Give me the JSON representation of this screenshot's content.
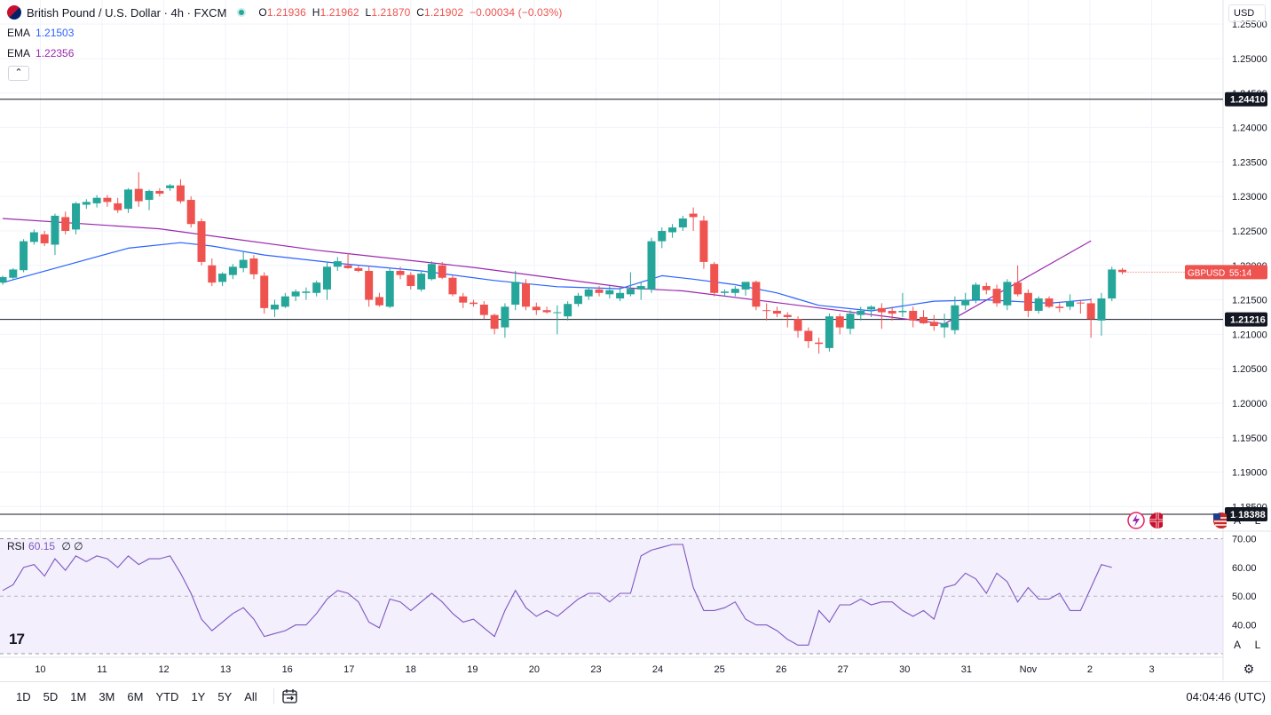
{
  "header": {
    "symbol_title": "British Pound / U.S. Dollar · 4h · FXCM",
    "ohlc": {
      "o_label": "O",
      "o": "1.21936",
      "h_label": "H",
      "h": "1.21962",
      "l_label": "L",
      "l": "1.21870",
      "c_label": "C",
      "c": "1.21902",
      "change": "−0.00034 (−0.03%)"
    },
    "ema_fast": {
      "label": "EMA",
      "value": "1.21503",
      "color": "#2962ff"
    },
    "ema_slow": {
      "label": "EMA",
      "value": "1.22356",
      "color": "#9c27b0"
    },
    "collapse_glyph": "⌃"
  },
  "axis": {
    "currency": "USD",
    "auto_label": "A",
    "log_label": "L",
    "settings_glyph": "⚙"
  },
  "rsi": {
    "label": "RSI",
    "value": "60.15",
    "extra": "∅ ∅",
    "color": "#7e57c2"
  },
  "time_ranges": [
    "1D",
    "5D",
    "1M",
    "3M",
    "6M",
    "YTD",
    "1Y",
    "5Y",
    "All"
  ],
  "clock": "04:04:46 (UTC)",
  "logo_text": "17",
  "colors": {
    "up": "#26a69a",
    "down": "#ef5350",
    "grid": "#f0f3fa",
    "hline": "#131722",
    "rsi_fill": "#f3effc"
  },
  "chart_data": {
    "type": "candlestick",
    "title": "British Pound / U.S. Dollar · 4h · FXCM",
    "ylim": [
      1.1835,
      1.2585
    ],
    "y_ticks": [
      "1.25500",
      "1.25000",
      "1.24500",
      "1.24000",
      "1.23500",
      "1.23000",
      "1.22500",
      "1.22000",
      "1.21500",
      "1.21000",
      "1.20500",
      "1.20000",
      "1.19500",
      "1.19000",
      "1.18500"
    ],
    "x_ticks": [
      {
        "label": "10",
        "idx": 3.6
      },
      {
        "label": "11",
        "idx": 9.5
      },
      {
        "label": "12",
        "idx": 15.4
      },
      {
        "label": "13",
        "idx": 21.3
      },
      {
        "label": "16",
        "idx": 27.2
      },
      {
        "label": "17",
        "idx": 33.1
      },
      {
        "label": "18",
        "idx": 39.0
      },
      {
        "label": "19",
        "idx": 44.9
      },
      {
        "label": "20",
        "idx": 50.8
      },
      {
        "label": "23",
        "idx": 56.7
      },
      {
        "label": "24",
        "idx": 62.6
      },
      {
        "label": "25",
        "idx": 68.5
      },
      {
        "label": "26",
        "idx": 74.4
      },
      {
        "label": "27",
        "idx": 80.3
      },
      {
        "label": "30",
        "idx": 86.2
      },
      {
        "label": "31",
        "idx": 92.1
      },
      {
        "label": "Nov",
        "idx": 98.0
      },
      {
        "label": "2",
        "idx": 103.9
      },
      {
        "label": "3",
        "idx": 109.8
      }
    ],
    "horizontal_levels": [
      {
        "value": 1.2441,
        "label": "1.24410"
      },
      {
        "value": 1.21216,
        "label": "1.21216"
      },
      {
        "value": 1.18388,
        "label": "1.18388"
      }
    ],
    "last_price": {
      "symbol": "GBPUSD",
      "countdown": "55:14",
      "value": 1.21902
    },
    "candles": [
      [
        1.2175,
        1.2185,
        1.2172,
        1.2183
      ],
      [
        1.2182,
        1.2196,
        1.218,
        1.2194
      ],
      [
        1.2193,
        1.2238,
        1.219,
        1.2235
      ],
      [
        1.2234,
        1.2252,
        1.223,
        1.2248
      ],
      [
        1.2245,
        1.225,
        1.2228,
        1.2232
      ],
      [
        1.223,
        1.2275,
        1.2215,
        1.2272
      ],
      [
        1.227,
        1.2278,
        1.2245,
        1.225
      ],
      [
        1.2252,
        1.2292,
        1.2245,
        1.229
      ],
      [
        1.2288,
        1.2296,
        1.2282,
        1.2292
      ],
      [
        1.229,
        1.2302,
        1.2284,
        1.2298
      ],
      [
        1.2298,
        1.2302,
        1.2285,
        1.2292
      ],
      [
        1.229,
        1.2298,
        1.2276,
        1.228
      ],
      [
        1.2282,
        1.2312,
        1.2276,
        1.231
      ],
      [
        1.2311,
        1.2335,
        1.2285,
        1.2293
      ],
      [
        1.2295,
        1.231,
        1.228,
        1.2308
      ],
      [
        1.2308,
        1.2312,
        1.23,
        1.2304
      ],
      [
        1.2312,
        1.2318,
        1.2308,
        1.2316
      ],
      [
        1.2316,
        1.2325,
        1.229,
        1.2293
      ],
      [
        1.2295,
        1.23,
        1.2255,
        1.226
      ],
      [
        1.2264,
        1.2268,
        1.22,
        1.2205
      ],
      [
        1.22,
        1.221,
        1.217,
        1.2175
      ],
      [
        1.2176,
        1.219,
        1.217,
        1.2188
      ],
      [
        1.2186,
        1.2202,
        1.218,
        1.2198
      ],
      [
        1.2196,
        1.222,
        1.219,
        1.2208
      ],
      [
        1.221,
        1.2215,
        1.218,
        1.2187
      ],
      [
        1.2185,
        1.219,
        1.213,
        1.2138
      ],
      [
        1.2136,
        1.215,
        1.2125,
        1.2143
      ],
      [
        1.214,
        1.216,
        1.2138,
        1.2155
      ],
      [
        1.2155,
        1.2165,
        1.2148,
        1.2162
      ],
      [
        1.216,
        1.2168,
        1.215,
        1.2162
      ],
      [
        1.216,
        1.2178,
        1.2155,
        1.2175
      ],
      [
        1.2165,
        1.2205,
        1.215,
        1.2198
      ],
      [
        1.2198,
        1.2212,
        1.2192,
        1.2206
      ],
      [
        1.22,
        1.2218,
        1.2195,
        1.2196
      ],
      [
        1.2196,
        1.22,
        1.219,
        1.2192
      ],
      [
        1.2192,
        1.2198,
        1.214,
        1.215
      ],
      [
        1.2154,
        1.216,
        1.214,
        1.2142
      ],
      [
        1.214,
        1.2195,
        1.2138,
        1.2192
      ],
      [
        1.2192,
        1.2198,
        1.218,
        1.2186
      ],
      [
        1.2186,
        1.219,
        1.2165,
        1.217
      ],
      [
        1.2165,
        1.2192,
        1.2162,
        1.2188
      ],
      [
        1.218,
        1.2206,
        1.2178,
        1.2202
      ],
      [
        1.22,
        1.2205,
        1.218,
        1.2182
      ],
      [
        1.2182,
        1.2185,
        1.2155,
        1.2158
      ],
      [
        1.2155,
        1.216,
        1.2138,
        1.2146
      ],
      [
        1.2146,
        1.215,
        1.214,
        1.2144
      ],
      [
        1.2143,
        1.2148,
        1.2122,
        1.2128
      ],
      [
        1.2128,
        1.213,
        1.21,
        1.2108
      ],
      [
        1.211,
        1.2145,
        1.2095,
        1.214
      ],
      [
        1.2143,
        1.2192,
        1.2135,
        1.2176
      ],
      [
        1.2174,
        1.218,
        1.2135,
        1.214
      ],
      [
        1.214,
        1.2146,
        1.2128,
        1.2135
      ],
      [
        1.2135,
        1.214,
        1.213,
        1.2132
      ],
      [
        1.2132,
        1.2142,
        1.21,
        1.2132
      ],
      [
        1.2126,
        1.2148,
        1.212,
        1.2144
      ],
      [
        1.2144,
        1.216,
        1.214,
        1.2156
      ],
      [
        1.2155,
        1.2168,
        1.215,
        1.2165
      ],
      [
        1.2165,
        1.217,
        1.2155,
        1.216
      ],
      [
        1.2158,
        1.217,
        1.2152,
        1.2164
      ],
      [
        1.2152,
        1.217,
        1.2148,
        1.216
      ],
      [
        1.2158,
        1.219,
        1.2155,
        1.2166
      ],
      [
        1.2165,
        1.2175,
        1.215,
        1.217
      ],
      [
        1.2165,
        1.224,
        1.216,
        1.2235
      ],
      [
        1.2235,
        1.2255,
        1.2225,
        1.225
      ],
      [
        1.2248,
        1.226,
        1.224,
        1.2255
      ],
      [
        1.2255,
        1.2272,
        1.225,
        1.2268
      ],
      [
        1.2275,
        1.2284,
        1.225,
        1.227
      ],
      [
        1.2265,
        1.2272,
        1.2195,
        1.2205
      ],
      [
        1.2202,
        1.2205,
        1.2155,
        1.216
      ],
      [
        1.216,
        1.2165,
        1.2155,
        1.2162
      ],
      [
        1.216,
        1.217,
        1.2155,
        1.2166
      ],
      [
        1.2165,
        1.2175,
        1.2156,
        1.2176
      ],
      [
        1.2176,
        1.2178,
        1.2135,
        1.214
      ],
      [
        1.2135,
        1.2145,
        1.212,
        1.2134
      ],
      [
        1.2134,
        1.214,
        1.2125,
        1.213
      ],
      [
        1.2128,
        1.2132,
        1.211,
        1.2125
      ],
      [
        1.2122,
        1.2126,
        1.2095,
        1.2105
      ],
      [
        1.2105,
        1.211,
        1.208,
        1.209
      ],
      [
        1.2088,
        1.2095,
        1.2072,
        1.2086
      ],
      [
        1.208,
        1.213,
        1.2075,
        1.2126
      ],
      [
        1.2126,
        1.213,
        1.21,
        1.211
      ],
      [
        1.2108,
        1.2135,
        1.21,
        1.213
      ],
      [
        1.2128,
        1.214,
        1.212,
        1.2134
      ],
      [
        1.2136,
        1.2142,
        1.2125,
        1.214
      ],
      [
        1.2138,
        1.2145,
        1.2108,
        1.2132
      ],
      [
        1.2134,
        1.214,
        1.212,
        1.213
      ],
      [
        1.2132,
        1.216,
        1.2125,
        1.2134
      ],
      [
        1.2134,
        1.214,
        1.211,
        1.212
      ],
      [
        1.2125,
        1.2135,
        1.2115,
        1.2116
      ],
      [
        1.2118,
        1.2128,
        1.2105,
        1.2112
      ],
      [
        1.211,
        1.213,
        1.2095,
        1.2116
      ],
      [
        1.2106,
        1.2155,
        1.21,
        1.2142
      ],
      [
        1.2142,
        1.216,
        1.2135,
        1.215
      ],
      [
        1.215,
        1.2175,
        1.2145,
        1.2172
      ],
      [
        1.217,
        1.2175,
        1.2158,
        1.2164
      ],
      [
        1.2166,
        1.2172,
        1.214,
        1.2145
      ],
      [
        1.2142,
        1.218,
        1.2135,
        1.2176
      ],
      [
        1.2175,
        1.22,
        1.2155,
        1.2158
      ],
      [
        1.216,
        1.2165,
        1.2125,
        1.2134
      ],
      [
        1.2134,
        1.2155,
        1.213,
        1.2152
      ],
      [
        1.2152,
        1.2155,
        1.2138,
        1.214
      ],
      [
        1.214,
        1.2146,
        1.2132,
        1.2138
      ],
      [
        1.214,
        1.2158,
        1.2135,
        1.2148
      ],
      [
        1.2146,
        1.215,
        1.213,
        1.2145
      ],
      [
        1.2145,
        1.2152,
        1.2095,
        1.2122
      ],
      [
        1.212,
        1.216,
        1.2098,
        1.2152
      ],
      [
        1.2152,
        1.2198,
        1.2148,
        1.2194
      ],
      [
        1.21936,
        1.21962,
        1.2187,
        1.21902
      ]
    ],
    "ema_fast_series": {
      "start": 1.2175,
      "end": 1.21503,
      "points": [
        [
          0,
          1.2175
        ],
        [
          6,
          1.22
        ],
        [
          12,
          1.2225
        ],
        [
          17,
          1.2233
        ],
        [
          20,
          1.2228
        ],
        [
          25,
          1.2215
        ],
        [
          32,
          1.2203
        ],
        [
          40,
          1.2192
        ],
        [
          47,
          1.2178
        ],
        [
          53,
          1.2169
        ],
        [
          59,
          1.2166
        ],
        [
          63,
          1.2185
        ],
        [
          66,
          1.218
        ],
        [
          70,
          1.2172
        ],
        [
          74,
          1.216
        ],
        [
          78,
          1.2142
        ],
        [
          83,
          1.2134
        ],
        [
          89,
          1.2148
        ],
        [
          94,
          1.215
        ],
        [
          100,
          1.2145
        ],
        [
          104,
          1.21503
        ]
      ]
    },
    "ema_slow_series": {
      "start": 1.2268,
      "end": 1.22356,
      "points": [
        [
          0,
          1.2268
        ],
        [
          15,
          1.2253
        ],
        [
          30,
          1.2222
        ],
        [
          45,
          1.2197
        ],
        [
          60,
          1.2167
        ],
        [
          65,
          1.2163
        ],
        [
          75,
          1.2144
        ],
        [
          90,
          1.2115
        ],
        [
          104,
          1.22356
        ]
      ]
    }
  },
  "rsi_data": {
    "ylim": [
      30,
      72
    ],
    "ticks": [
      "70.00",
      "60.00",
      "50.00",
      "40.00"
    ],
    "band": [
      30,
      70
    ],
    "values": [
      52,
      54,
      60,
      61,
      57,
      63,
      59,
      64,
      62,
      64,
      63,
      60,
      64,
      61,
      63,
      63,
      64,
      58,
      51,
      42,
      38,
      41,
      44,
      46,
      42,
      36,
      37,
      38,
      40,
      40,
      44,
      49,
      52,
      51,
      48,
      41,
      39,
      49,
      48,
      45,
      48,
      51,
      48,
      44,
      41,
      42,
      39,
      36,
      45,
      52,
      46,
      43,
      45,
      43,
      46,
      49,
      51,
      51,
      48,
      51,
      51,
      64,
      66,
      67,
      68,
      68,
      53,
      45,
      45,
      46,
      48,
      42,
      40,
      40,
      38,
      35,
      33,
      33,
      45,
      41,
      47,
      47,
      49,
      47,
      48,
      48,
      45,
      43,
      45,
      42,
      53,
      54,
      58,
      56,
      51,
      58,
      55,
      48,
      53,
      49,
      49,
      51,
      45,
      45,
      53,
      61,
      60
    ]
  }
}
